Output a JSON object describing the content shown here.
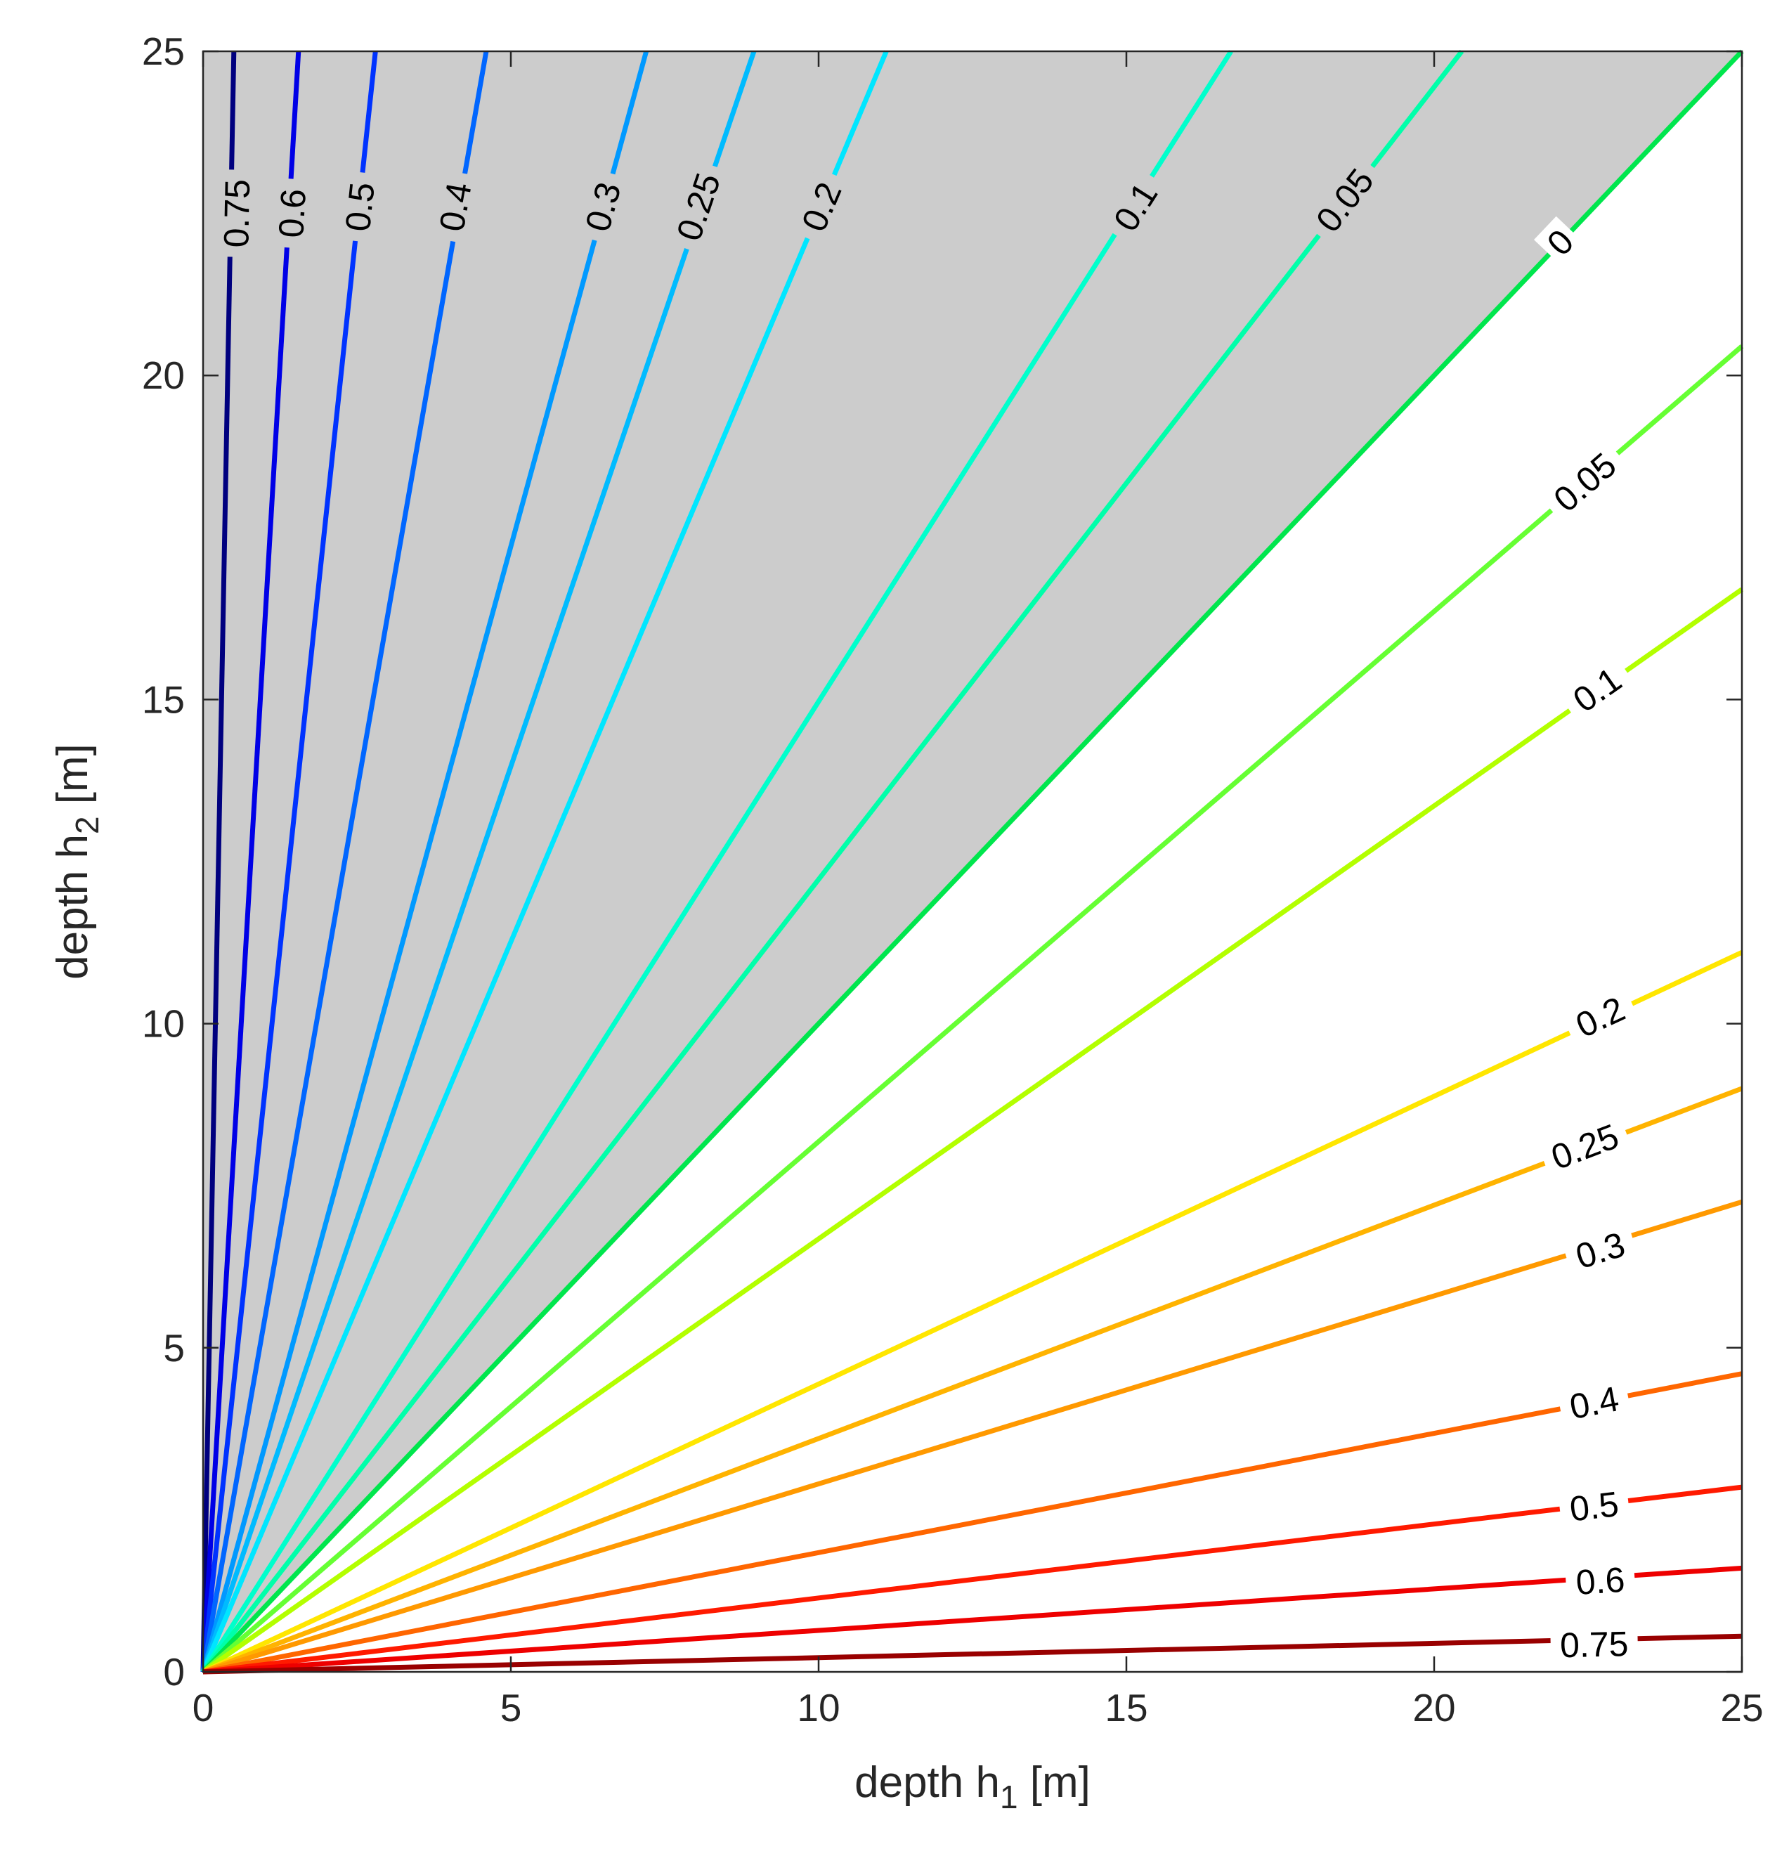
{
  "chart_data": {
    "type": "contour",
    "xlabel": "depth h",
    "xlabel_sub": "1",
    "xlabel_unit": " [m]",
    "ylabel": "depth h",
    "ylabel_sub": "2",
    "ylabel_unit": " [m]",
    "xlim": [
      0,
      25
    ],
    "ylim": [
      0,
      25
    ],
    "xticks": [
      "0",
      "5",
      "10",
      "15",
      "20",
      "25"
    ],
    "yticks": [
      "0",
      "5",
      "10",
      "15",
      "20",
      "25"
    ],
    "shaded_region": {
      "description": "region where h2 > h1",
      "color": "#cccccc"
    },
    "contours_upper": [
      {
        "level": "0.75",
        "label": "0.75",
        "color": "#00007f",
        "h1_at_h2_25": 0.5,
        "label_at": [
          0.55,
          22.5
        ]
      },
      {
        "level": "0.6",
        "label": "0.6",
        "color": "#0000e6",
        "h1_at_h2_25": 1.55,
        "label_at": [
          1.45,
          22.5
        ]
      },
      {
        "level": "0.5",
        "label": "0.5",
        "color": "#0033ff",
        "h1_at_h2_25": 2.8,
        "label_at": [
          2.55,
          22.6
        ]
      },
      {
        "level": "0.4",
        "label": "0.4",
        "color": "#0066ff",
        "h1_at_h2_25": 4.6,
        "label_at": [
          4.1,
          22.6
        ]
      },
      {
        "level": "0.3",
        "label": "0.3",
        "color": "#0099ff",
        "h1_at_h2_25": 7.2,
        "label_at": [
          6.5,
          22.6
        ]
      },
      {
        "level": "0.25",
        "label": "0.25",
        "color": "#00bbff",
        "h1_at_h2_25": 8.95,
        "label_at": [
          8.05,
          22.6
        ]
      },
      {
        "level": "0.2",
        "label": "0.2",
        "color": "#00e6ff",
        "h1_at_h2_25": 11.1,
        "label_at": [
          10.05,
          22.6
        ]
      },
      {
        "level": "0.1",
        "label": "0.1",
        "color": "#00ffcc",
        "h1_at_h2_25": 16.7,
        "label_at": [
          15.15,
          22.6
        ]
      },
      {
        "level": "0.05",
        "label": "0.05",
        "color": "#00ffaa",
        "h1_at_h2_25": 20.45,
        "label_at": [
          18.55,
          22.7
        ]
      },
      {
        "level": "0",
        "label": "0",
        "color": "#00e64d",
        "h1_at_h2_25": 25,
        "label_at": [
          22.05,
          22.05
        ]
      }
    ],
    "contours_lower": [
      {
        "level": "0.05",
        "label": "0.05",
        "color": "#66ff33",
        "h2_at_h1_25": 20.45,
        "label_at": [
          22.45,
          18.35
        ]
      },
      {
        "level": "0.1",
        "label": "0.1",
        "color": "#b3ff00",
        "h2_at_h1_25": 16.7,
        "label_at": [
          22.65,
          15.15
        ]
      },
      {
        "level": "0.2",
        "label": "0.2",
        "color": "#ffe600",
        "h2_at_h1_25": 11.1,
        "label_at": [
          22.7,
          10.1
        ]
      },
      {
        "level": "0.25",
        "label": "0.25",
        "color": "#ffb300",
        "h2_at_h1_25": 9.0,
        "label_at": [
          22.45,
          8.1
        ]
      },
      {
        "level": "0.3",
        "label": "0.3",
        "color": "#ff9900",
        "h2_at_h1_25": 7.25,
        "label_at": [
          22.7,
          6.5
        ]
      },
      {
        "level": "0.4",
        "label": "0.4",
        "color": "#ff6600",
        "h2_at_h1_25": 4.6,
        "label_at": [
          22.6,
          4.15
        ]
      },
      {
        "level": "0.5",
        "label": "0.5",
        "color": "#ff1a00",
        "h2_at_h1_25": 2.85,
        "label_at": [
          22.6,
          2.55
        ]
      },
      {
        "level": "0.6",
        "label": "0.6",
        "color": "#ee0000",
        "h2_at_h1_25": 1.6,
        "label_at": [
          22.7,
          1.4
        ]
      },
      {
        "level": "0.75",
        "label": "0.75",
        "color": "#990000",
        "h2_at_h1_25": 0.55,
        "label_at": [
          22.6,
          0.42
        ]
      }
    ]
  }
}
